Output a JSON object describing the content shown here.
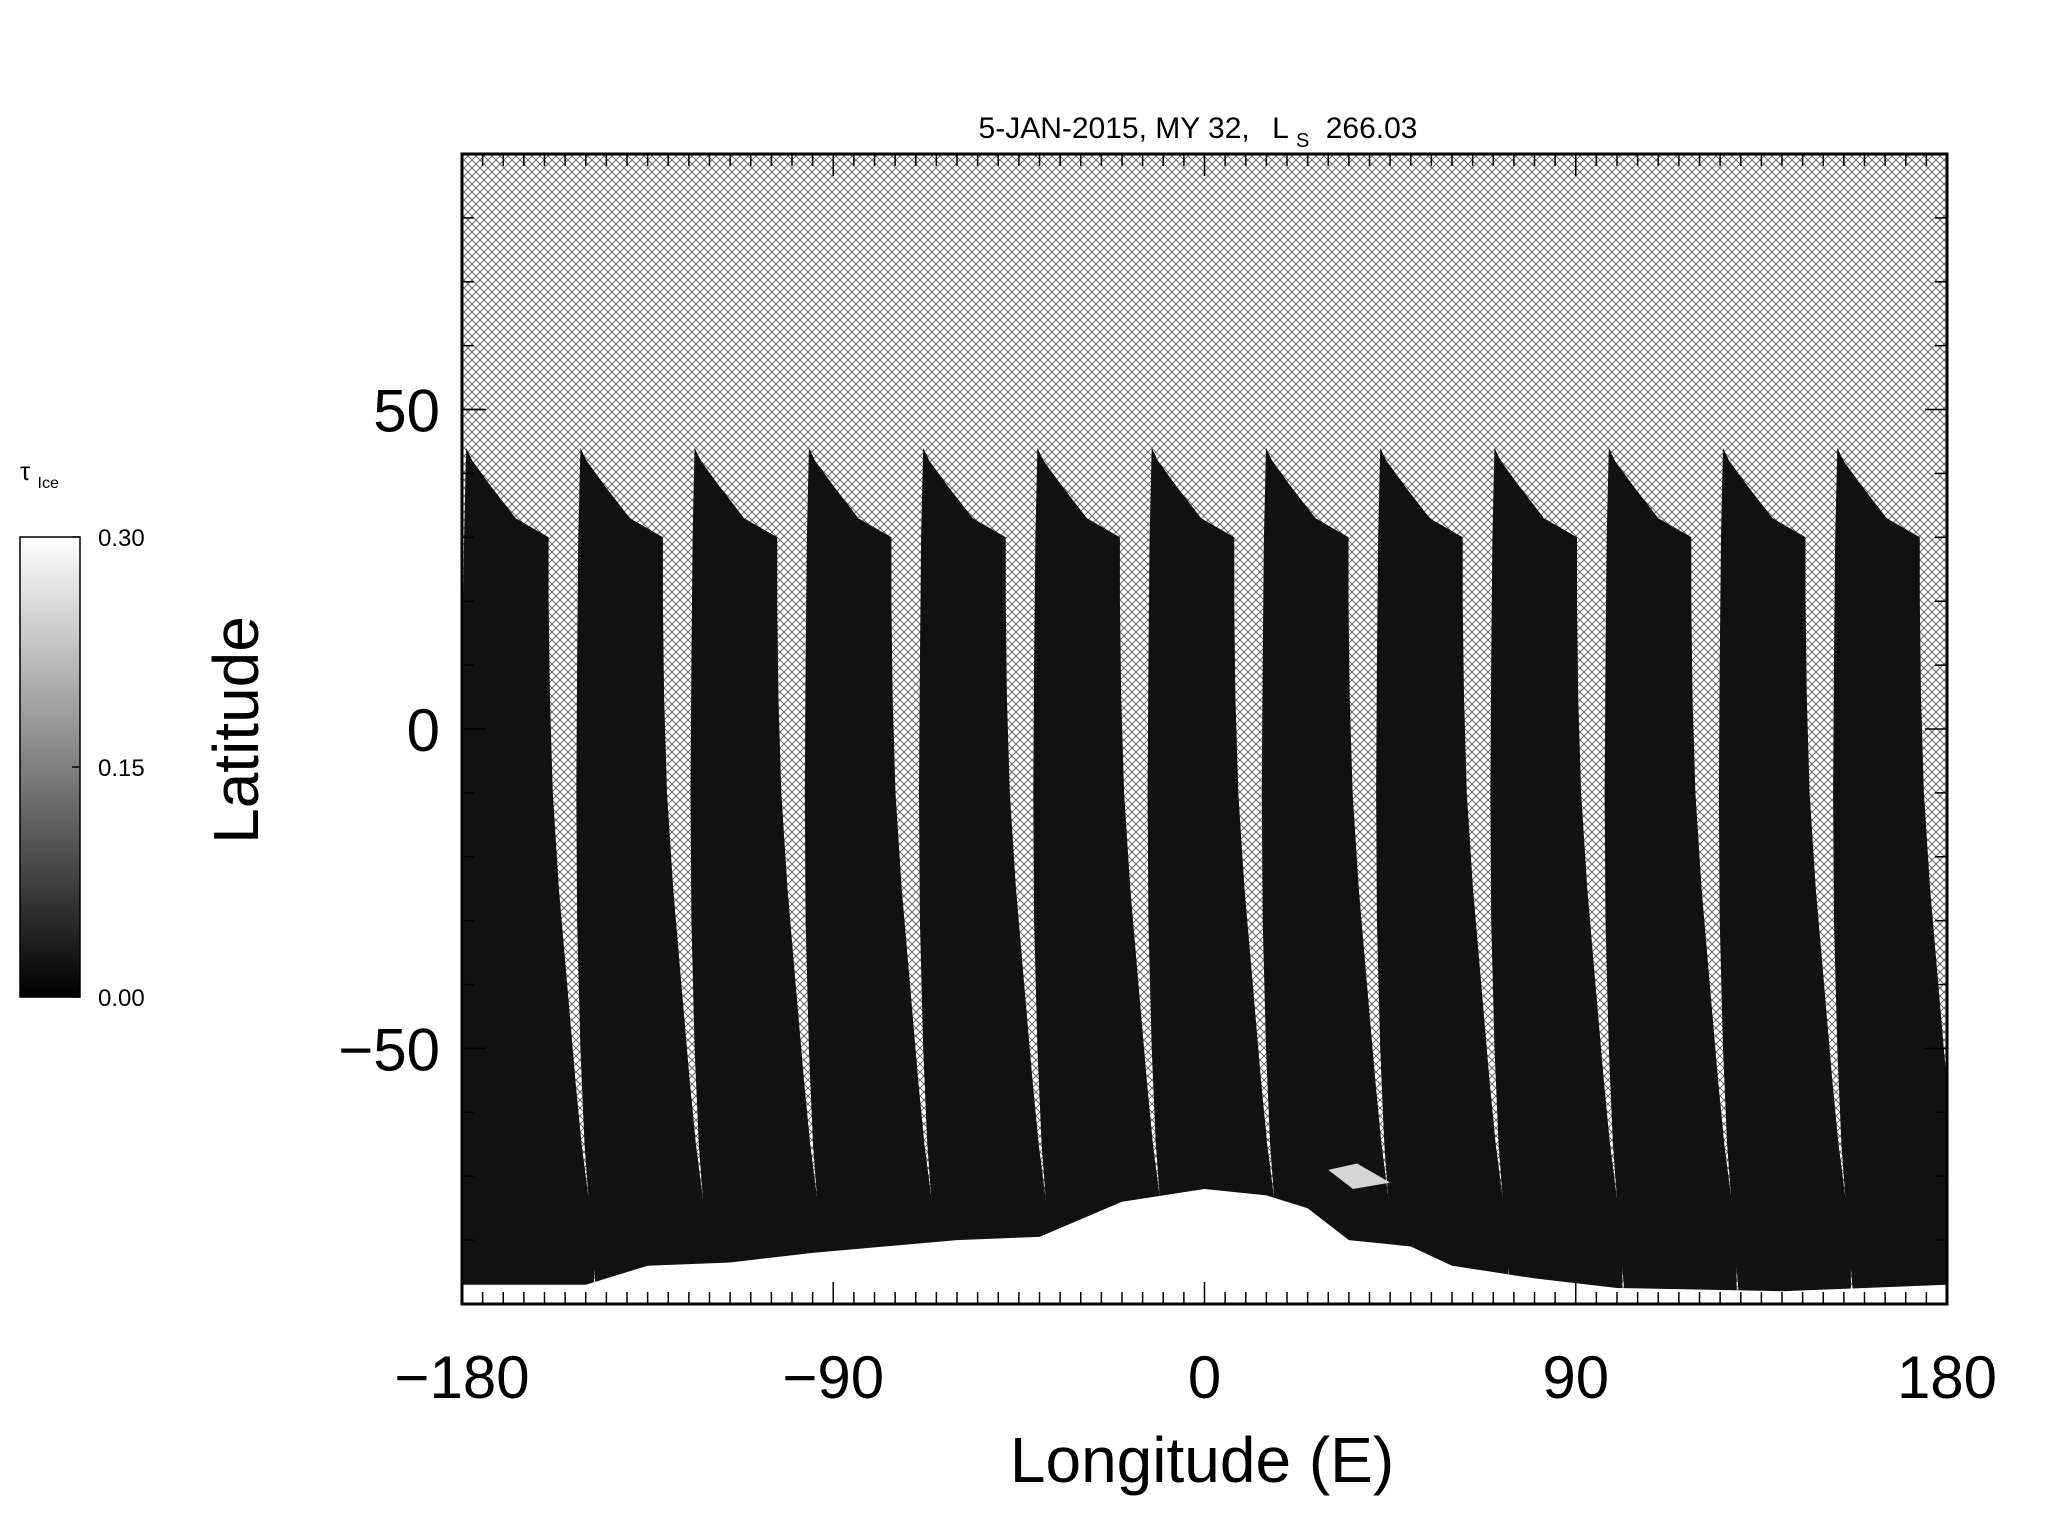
{
  "chart_data": {
    "type": "heatmap",
    "title_parts": {
      "date": "5-JAN-2015, MY 32,",
      "ls_symbol": "L",
      "ls_subscript": "S",
      "ls_value": "266.03"
    },
    "xlabel": "Longitude (E)",
    "ylabel": "Latitude",
    "xlim": [
      -180,
      180
    ],
    "ylim": [
      -90,
      90
    ],
    "x_ticks": [
      -180,
      -90,
      0,
      90,
      180
    ],
    "x_tick_labels": [
      "−180",
      "−90",
      "0",
      "90",
      "180"
    ],
    "y_ticks": [
      -50,
      0,
      50
    ],
    "y_tick_labels": [
      "−50",
      "0",
      "50"
    ],
    "x_minor_step": 5,
    "y_minor_step": 10,
    "no_data_fill": "cross-hatch",
    "colorbar": {
      "label_symbol": "τ",
      "label_subscript": "Ice",
      "min": 0.0,
      "max": 0.3,
      "ticks": [
        0.0,
        0.15,
        0.3
      ],
      "tick_labels": [
        "0.00",
        "0.15",
        "0.30"
      ],
      "colormap": "grayscale",
      "color_min": "#000000",
      "color_max": "#ffffff"
    },
    "swaths": {
      "count": 13,
      "first_top_lon": -179,
      "spacing_lon": 27.7,
      "top_lat": 44,
      "value_typical": 0.02
    },
    "polar_ice_region": {
      "lat_max": -69,
      "lon_center": 0,
      "value": 0.3
    }
  }
}
